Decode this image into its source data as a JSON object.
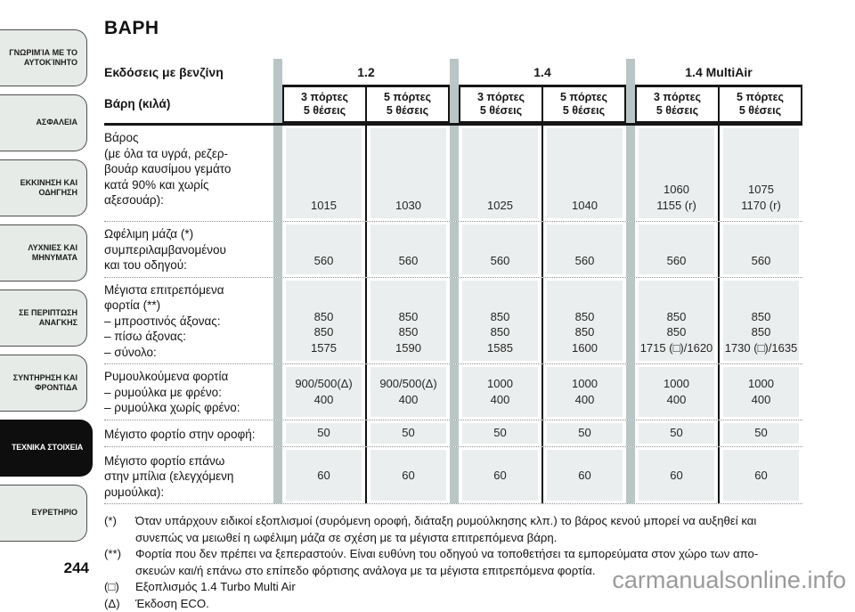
{
  "page": {
    "title": "ΒΑΡΗ",
    "number": "244",
    "watermark": "carmanualsonline.info"
  },
  "colors": {
    "cell_background": "#ebeeee",
    "group_separator_bar": "#b9c6c5",
    "active_tab_background": "#0e0e0e",
    "tab_background": "#e7ebe8",
    "line_black": "#161616"
  },
  "sidebar": {
    "items": [
      {
        "label": "ΓΝΩΡΙΜΊΑ ΜΕ ΤΟ ΑΥΤΟΚΊΝΗΤΟ",
        "active": false
      },
      {
        "label": "ΑΣΦΑΛΕΙΑ",
        "active": false
      },
      {
        "label": "ΕΚΚΙΝΗΣΗ ΚΑΙ ΟΔΗΓΗΣΗ",
        "active": false
      },
      {
        "label": "ΛΥΧΝΙΕΣ ΚΑΙ ΜΗΝΥΜΑΤΑ",
        "active": false
      },
      {
        "label": "ΣΕ ΠΕΡΙΠΤΩΣΗ ΑΝΑΓΚΗΣ",
        "active": false
      },
      {
        "label": "ΣΥΝΤΗΡΗΣΗ ΚΑΙ ΦΡΟΝΤΙΔΑ",
        "active": false
      },
      {
        "label": "ΤΕΧΝΙΚΑ ΣΤΟΙΧΕΙΑ",
        "active": true
      },
      {
        "label": "ΕΥΡΕΤΗΡΙΟ",
        "active": false
      }
    ]
  },
  "table": {
    "corner_top": "Εκδόσεις με βενζίνη",
    "corner_bottom": "Βάρη (κιλά)",
    "groups": [
      {
        "label": "1.2",
        "col1": "3 πόρτες\n5 θέσεις",
        "col2": "5 πόρτες\n5 θέσεις"
      },
      {
        "label": "1.4",
        "col1": "3 πόρτες\n5 θέσεις",
        "col2": "5 πόρτες\n5 θέσεις"
      },
      {
        "label": "1.4 MultiAir",
        "col1": "3 πόρτες\n5 θέσεις",
        "col2": "5 πόρτες\n5 θέσεις"
      }
    ],
    "rows": [
      {
        "label": "Βάρος\n(με όλα τα υγρά, ρεζερ-\nβουάρ καυσίμου γεμάτο\nκατά 90% και χωρίς\nαξεσουάρ):",
        "values": [
          "1015",
          "1030",
          "1025",
          "1040",
          "1060\n1155 (r)",
          "1075\n1170 (r)"
        ]
      },
      {
        "label": "Ωφέλιμη μάζα (*)\nσυμπεριλαμβανομένου\nκαι του οδηγού:",
        "values": [
          "560",
          "560",
          "560",
          "560",
          "560",
          "560"
        ]
      },
      {
        "label": "Μέγιστα επιτρεπόμενα\nφορτία (**)\n– μπροστινός άξονας:\n– πίσω άξονας:\n– σύνολο:",
        "values": [
          "850\n850\n1575",
          "850\n850\n1590",
          "850\n850\n1585",
          "850\n850\n1600",
          "850\n850\n1715 (□)/1620",
          "850\n850\n1730 (□)/1635"
        ]
      },
      {
        "label": "Ρυμουλκούμενα φορτία\n– ρυμούλκα με φρένο:\n– ρυμούλκα χωρίς φρένο:",
        "values": [
          "900/500(Δ)\n400",
          "900/500(Δ)\n400",
          "1000\n400",
          "1000\n400",
          "1000\n400",
          "1000\n400"
        ]
      },
      {
        "label": "Μέγιστο φορτίο στην οροφή:",
        "values": [
          "50",
          "50",
          "50",
          "50",
          "50",
          "50"
        ]
      },
      {
        "label": "Μέγιστο φορτίο επάνω\nστην μπίλια (ελεγχόμενη\nρυμούλκα):",
        "values": [
          "60",
          "60",
          "60",
          "60",
          "60",
          "60"
        ]
      }
    ]
  },
  "footnotes": {
    "items": [
      {
        "marker": "(*)",
        "text": "Όταν υπάρχουν ειδικοί εξοπλισμοί (συρόμενη οροφή, διάταξη ρυμούλκησης κλπ.) το βάρος κενού μπορεί να αυξηθεί και\nσυνεπώς να μειωθεί η ωφέλιμη μάζα σε σχέση με τα μέγιστα επιτρεπόμενα βάρη."
      },
      {
        "marker": "(**)",
        "text": "Φορτία που δεν πρέπει να ξεπεραστούν. Είναι ευθύνη του οδηγού να τοποθετήσει τα εμπορεύματα στον χώρο των απο-\nσκευών και/ή επάνω στο επίπεδο φόρτισης ανάλογα με τα μέγιστα επιτρεπόμενα φορτία."
      },
      {
        "marker": "(□)",
        "text": "Εξοπλισμός 1.4 Turbo Multi Air"
      },
      {
        "marker": "(Δ)",
        "text": "Έκδοση ECO."
      }
    ]
  }
}
